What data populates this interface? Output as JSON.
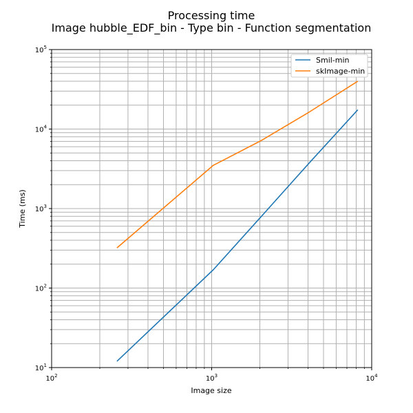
{
  "chart_data": {
    "type": "line",
    "title": "Processing time",
    "subtitle": "Image hubble_EDF_bin - Type bin - Function segmentation",
    "xlabel": "Image size",
    "ylabel": "Time (ms)",
    "xscale": "log",
    "yscale": "log",
    "xlim": [
      100,
      10000
    ],
    "ylim": [
      10,
      100000
    ],
    "grid": true,
    "grid_which": "both",
    "legend_position": "top-right",
    "x_ticks": [
      {
        "value": 100,
        "base": "10",
        "exp": "2"
      },
      {
        "value": 1000,
        "base": "10",
        "exp": "3"
      },
      {
        "value": 10000,
        "base": "10",
        "exp": "4"
      }
    ],
    "y_ticks": [
      {
        "value": 10,
        "base": "10",
        "exp": "1"
      },
      {
        "value": 100,
        "base": "10",
        "exp": "2"
      },
      {
        "value": 1000,
        "base": "10",
        "exp": "3"
      },
      {
        "value": 10000,
        "base": "10",
        "exp": "4"
      },
      {
        "value": 100000,
        "base": "10",
        "exp": "5"
      }
    ],
    "series": [
      {
        "name": "Smil-min",
        "color": "#1f77b4",
        "x": [
          256,
          1024,
          2048,
          4096,
          8192
        ],
        "y": [
          12,
          170,
          800,
          3800,
          17500
        ]
      },
      {
        "name": "skImage-min",
        "color": "#ff7f0e",
        "x": [
          256,
          1024,
          2048,
          4096,
          8192
        ],
        "y": [
          320,
          3500,
          7200,
          16500,
          40000
        ]
      }
    ]
  }
}
